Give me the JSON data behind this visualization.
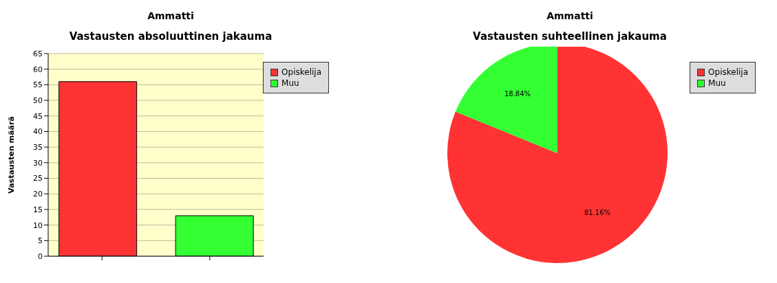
{
  "chart_data": [
    {
      "type": "bar",
      "title": "Ammatti",
      "subtitle": "Vastausten absoluuttinen jakauma",
      "ylabel": "Vastausten määrä",
      "categories": [
        null,
        null
      ],
      "series": [
        {
          "name": "Opiskelija",
          "color": "#ff3333",
          "values": [
            56,
            null
          ]
        },
        {
          "name": "Muu",
          "color": "#33ff33",
          "values": [
            null,
            13
          ]
        }
      ],
      "ylim": [
        0,
        65
      ],
      "yticks": [
        0,
        5,
        10,
        15,
        20,
        25,
        30,
        35,
        40,
        45,
        50,
        55,
        60,
        65
      ],
      "grid": "y",
      "legend": "top right"
    },
    {
      "type": "pie",
      "title": "Ammatti",
      "subtitle": "Vastausten suhteellinen jakauma",
      "categories": [
        "Opiskelija",
        "Muu"
      ],
      "values": [
        81.16,
        18.84
      ],
      "colors": [
        "#ff3333",
        "#33ff33"
      ],
      "value_labels": [
        "81.16%",
        "18.84%"
      ],
      "legend": "top right"
    }
  ]
}
